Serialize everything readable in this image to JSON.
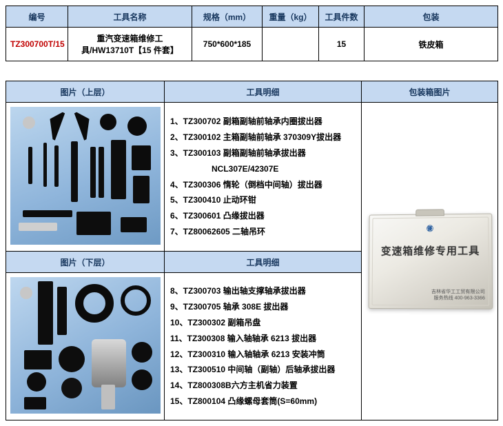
{
  "table1": {
    "headers": {
      "code": "编号",
      "name": "工具名称",
      "spec": "规格（mm）",
      "weight": "重量（kg）",
      "count": "工具件数",
      "package": "包装"
    },
    "row": {
      "code": "TZ300700T/15",
      "name": "重汽变速箱维修工具/HW13710T【15 件套】",
      "spec": "750*600*185",
      "weight": "",
      "count": "15",
      "package": "铁皮箱"
    },
    "col_widths": [
      "90px",
      "180px",
      "102px",
      "82px",
      "66px",
      "194px"
    ]
  },
  "table2": {
    "headers": {
      "photo_upper": "图片（上层）",
      "detail": "工具明细",
      "package_photo": "包装箱图片",
      "photo_lower": "图片（下层）"
    },
    "col_widths": [
      "230px",
      "286px",
      "198px"
    ],
    "detail_upper": [
      "1、TZ300702 副箱副轴前轴承内圈拔出器",
      "2、TZ300102 主箱副轴前轴承 370309Y拔出器",
      "3、TZ300103 副箱副轴前轴承拔出器",
      "NCL307E/42307E",
      "4、TZ300306 惰轮（倒档中间轴）拔出器",
      "5、TZ300410 止动环钳",
      "6、TZ300601 凸缘拔出器",
      "7、TZ80062605 二轴吊环"
    ],
    "detail_upper_indent_idx": 3,
    "detail_lower": [
      "8、TZ300703  输出轴支撑轴承拔出器",
      "9、TZ300705  轴承 308E 拔出器",
      "10、TZ300302 副箱吊盘",
      "11、TZ300308 输入轴轴承 6213 拔出器",
      "12、TZ300310 输入轴轴承 6213 安装冲筒",
      "13、TZ300510 中间轴（副轴）后轴承拔出器",
      "14、TZ800308B六方主机省力装置",
      "15、TZ800104 凸缘螺母套筒(S=60mm)"
    ]
  },
  "case": {
    "logo": "㊝",
    "main": "变速箱维修专用工具",
    "small": "吉林省华工工贸有限公司\n服务热线 400-963-3366"
  },
  "colors": {
    "header_bg": "#c5d9f1",
    "header_fg": "#17365d",
    "code_fg": "#c00000",
    "photo_blue": "#8fb5db"
  }
}
